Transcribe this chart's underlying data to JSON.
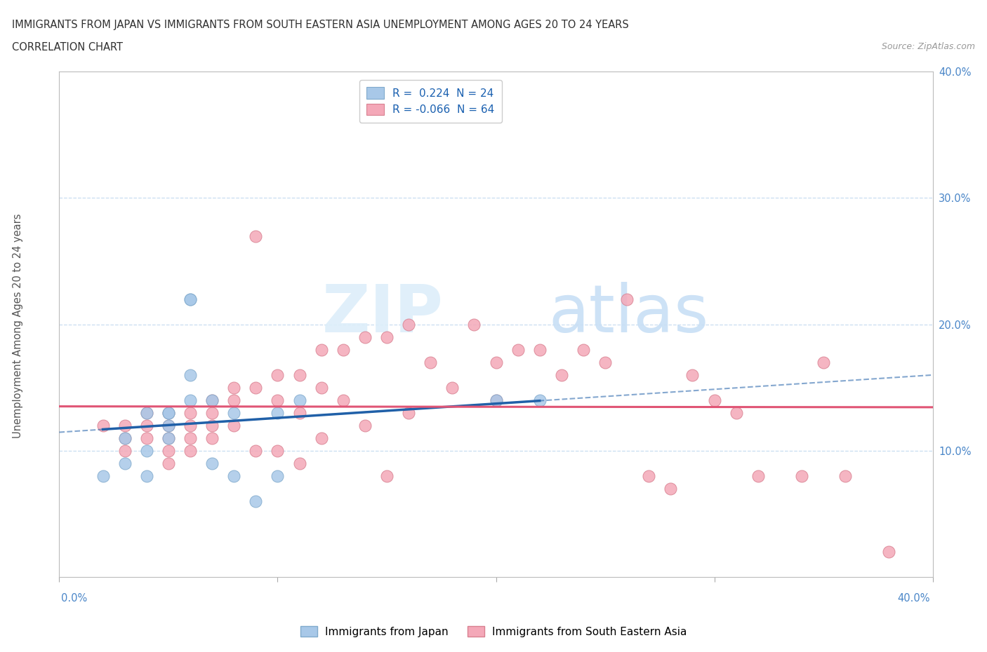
{
  "title_line1": "IMMIGRANTS FROM JAPAN VS IMMIGRANTS FROM SOUTH EASTERN ASIA UNEMPLOYMENT AMONG AGES 20 TO 24 YEARS",
  "title_line2": "CORRELATION CHART",
  "source_text": "Source: ZipAtlas.com",
  "ylabel": "Unemployment Among Ages 20 to 24 years",
  "xlim": [
    0.0,
    0.4
  ],
  "ylim": [
    0.0,
    0.4
  ],
  "japan_color": "#a8c8e8",
  "japan_edge_color": "#80aacc",
  "sea_color": "#f4a8b8",
  "sea_edge_color": "#d88090",
  "japan_R": 0.224,
  "japan_N": 24,
  "sea_R": -0.066,
  "sea_N": 64,
  "japan_scatter_x": [
    0.02,
    0.03,
    0.03,
    0.04,
    0.04,
    0.04,
    0.05,
    0.05,
    0.05,
    0.05,
    0.06,
    0.06,
    0.06,
    0.06,
    0.07,
    0.07,
    0.08,
    0.08,
    0.09,
    0.1,
    0.1,
    0.11,
    0.2,
    0.22
  ],
  "japan_scatter_y": [
    0.08,
    0.09,
    0.11,
    0.13,
    0.1,
    0.08,
    0.13,
    0.13,
    0.12,
    0.11,
    0.22,
    0.22,
    0.16,
    0.14,
    0.14,
    0.09,
    0.13,
    0.08,
    0.06,
    0.13,
    0.08,
    0.14,
    0.14,
    0.14
  ],
  "sea_scatter_x": [
    0.02,
    0.03,
    0.03,
    0.03,
    0.04,
    0.04,
    0.04,
    0.05,
    0.05,
    0.05,
    0.05,
    0.05,
    0.06,
    0.06,
    0.06,
    0.06,
    0.07,
    0.07,
    0.07,
    0.07,
    0.08,
    0.08,
    0.08,
    0.09,
    0.09,
    0.09,
    0.1,
    0.1,
    0.1,
    0.11,
    0.11,
    0.11,
    0.12,
    0.12,
    0.12,
    0.13,
    0.13,
    0.14,
    0.14,
    0.15,
    0.15,
    0.16,
    0.16,
    0.17,
    0.18,
    0.19,
    0.2,
    0.2,
    0.21,
    0.22,
    0.23,
    0.24,
    0.25,
    0.26,
    0.27,
    0.28,
    0.29,
    0.3,
    0.31,
    0.32,
    0.34,
    0.35,
    0.36,
    0.38
  ],
  "sea_scatter_y": [
    0.12,
    0.12,
    0.11,
    0.1,
    0.13,
    0.12,
    0.11,
    0.13,
    0.12,
    0.11,
    0.1,
    0.09,
    0.13,
    0.12,
    0.11,
    0.1,
    0.14,
    0.13,
    0.12,
    0.11,
    0.15,
    0.14,
    0.12,
    0.27,
    0.15,
    0.1,
    0.16,
    0.14,
    0.1,
    0.16,
    0.13,
    0.09,
    0.18,
    0.15,
    0.11,
    0.18,
    0.14,
    0.19,
    0.12,
    0.19,
    0.08,
    0.2,
    0.13,
    0.17,
    0.15,
    0.2,
    0.17,
    0.14,
    0.18,
    0.18,
    0.16,
    0.18,
    0.17,
    0.22,
    0.08,
    0.07,
    0.16,
    0.14,
    0.13,
    0.08,
    0.08,
    0.17,
    0.08,
    0.02
  ],
  "trend_japan_color": "#2060a8",
  "trend_sea_color": "#e05575",
  "bg_color": "#ffffff",
  "grid_color": "#c8ddf0",
  "title_color": "#303030",
  "tick_color": "#4a86c8",
  "legend_R_color": "#1a60b0",
  "watermark_zip_color": "#ddeefa",
  "watermark_atlas_color": "#c8dff5"
}
